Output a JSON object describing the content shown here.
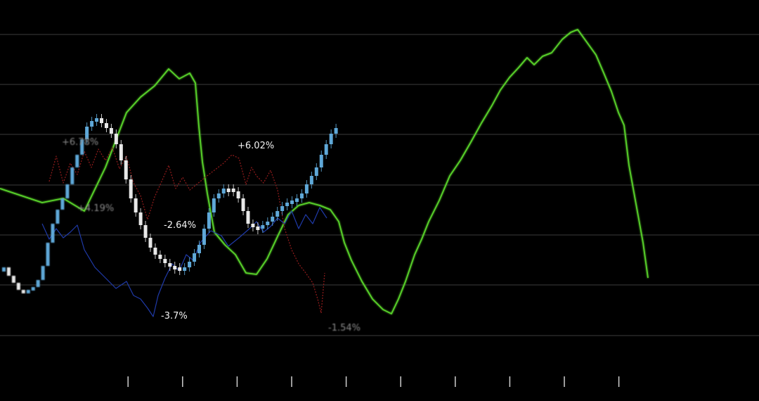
{
  "chart_data": {
    "type": "line",
    "title": "",
    "xlabel": "",
    "ylabel": "",
    "grid": true,
    "x_tick_count": 14,
    "series": [
      {
        "color": "#58d12a",
        "points": [
          [
            0,
            268
          ],
          [
            30,
            278
          ],
          [
            60,
            288
          ],
          [
            90,
            282
          ],
          [
            120,
            300
          ],
          [
            150,
            238
          ],
          [
            180,
            160
          ],
          [
            200,
            138
          ],
          [
            220,
            122
          ],
          [
            240,
            98
          ],
          [
            255,
            112
          ],
          [
            270,
            104
          ],
          [
            278,
            118
          ],
          [
            283,
            180
          ],
          [
            288,
            230
          ],
          [
            295,
            275
          ],
          [
            305,
            330
          ],
          [
            320,
            348
          ],
          [
            335,
            362
          ],
          [
            350,
            388
          ],
          [
            365,
            390
          ],
          [
            380,
            368
          ],
          [
            395,
            336
          ],
          [
            410,
            305
          ],
          [
            425,
            292
          ],
          [
            440,
            288
          ],
          [
            455,
            292
          ],
          [
            470,
            298
          ],
          [
            482,
            315
          ],
          [
            490,
            345
          ],
          [
            500,
            370
          ],
          [
            515,
            400
          ],
          [
            530,
            425
          ],
          [
            545,
            440
          ],
          [
            557,
            446
          ],
          [
            567,
            425
          ],
          [
            577,
            400
          ],
          [
            590,
            362
          ],
          [
            600,
            340
          ],
          [
            610,
            315
          ],
          [
            625,
            285
          ],
          [
            640,
            250
          ],
          [
            655,
            228
          ],
          [
            670,
            202
          ],
          [
            685,
            175
          ],
          [
            700,
            150
          ],
          [
            712,
            128
          ],
          [
            725,
            110
          ],
          [
            738,
            96
          ],
          [
            750,
            82
          ],
          [
            760,
            92
          ],
          [
            772,
            80
          ],
          [
            785,
            75
          ],
          [
            800,
            56
          ],
          [
            812,
            46
          ],
          [
            822,
            42
          ],
          [
            835,
            60
          ],
          [
            848,
            78
          ],
          [
            860,
            106
          ],
          [
            870,
            130
          ],
          [
            880,
            160
          ],
          [
            888,
            178
          ],
          [
            895,
            235
          ],
          [
            905,
            290
          ],
          [
            915,
            345
          ],
          [
            922,
            395
          ]
        ]
      },
      {
        "color": "#1f3aa8",
        "points": [
          [
            60,
            318
          ],
          [
            70,
            340
          ],
          [
            80,
            325
          ],
          [
            90,
            338
          ],
          [
            100,
            330
          ],
          [
            110,
            320
          ],
          [
            120,
            355
          ],
          [
            135,
            380
          ],
          [
            150,
            395
          ],
          [
            165,
            410
          ],
          [
            180,
            400
          ],
          [
            190,
            420
          ],
          [
            200,
            425
          ],
          [
            210,
            438
          ],
          [
            218,
            450
          ],
          [
            225,
            420
          ],
          [
            235,
            395
          ],
          [
            245,
            375
          ],
          [
            255,
            385
          ],
          [
            265,
            362
          ],
          [
            275,
            370
          ],
          [
            285,
            345
          ],
          [
            300,
            328
          ],
          [
            315,
            335
          ],
          [
            325,
            350
          ],
          [
            340,
            338
          ],
          [
            355,
            325
          ],
          [
            365,
            315
          ],
          [
            375,
            330
          ],
          [
            385,
            322
          ],
          [
            395,
            310
          ],
          [
            405,
            318
          ],
          [
            415,
            300
          ],
          [
            425,
            325
          ],
          [
            435,
            305
          ],
          [
            445,
            318
          ],
          [
            455,
            295
          ],
          [
            465,
            310
          ]
        ]
      },
      {
        "color": "#8a1a1a",
        "points": [
          [
            70,
            258
          ],
          [
            80,
            222
          ],
          [
            90,
            260
          ],
          [
            100,
            232
          ],
          [
            110,
            248
          ],
          [
            120,
            215
          ],
          [
            130,
            238
          ],
          [
            140,
            212
          ],
          [
            150,
            228
          ],
          [
            160,
            210
          ],
          [
            170,
            240
          ],
          [
            180,
            222
          ],
          [
            190,
            260
          ],
          [
            200,
            278
          ],
          [
            210,
            312
          ],
          [
            220,
            280
          ],
          [
            230,
            258
          ],
          [
            240,
            235
          ],
          [
            250,
            268
          ],
          [
            260,
            252
          ],
          [
            270,
            270
          ],
          [
            280,
            262
          ],
          [
            292,
            252
          ],
          [
            305,
            242
          ],
          [
            318,
            232
          ],
          [
            330,
            220
          ],
          [
            340,
            225
          ],
          [
            350,
            262
          ],
          [
            358,
            238
          ],
          [
            365,
            250
          ],
          [
            375,
            260
          ],
          [
            385,
            242
          ],
          [
            395,
            270
          ],
          [
            405,
            325
          ],
          [
            415,
            355
          ],
          [
            425,
            375
          ],
          [
            435,
            388
          ],
          [
            445,
            402
          ],
          [
            452,
            425
          ],
          [
            457,
            445
          ],
          [
            462,
            388
          ]
        ]
      }
    ],
    "candles": {
      "color_up": "#5fa8d8",
      "color_down": "#e8e8e8",
      "close": [
        380,
        392,
        402,
        412,
        415,
        412,
        408,
        398,
        378,
        345,
        318,
        298,
        282,
        262,
        238,
        220,
        198,
        180,
        172,
        168,
        175,
        182,
        190,
        205,
        228,
        255,
        282,
        302,
        320,
        338,
        352,
        362,
        368,
        374,
        378,
        380,
        382,
        380,
        372,
        360,
        348,
        325,
        302,
        282,
        275,
        268,
        268,
        272,
        282,
        300,
        318,
        322,
        325,
        320,
        315,
        308,
        300,
        293,
        288,
        285,
        282,
        275,
        262,
        250,
        238,
        220,
        205,
        190,
        182
      ]
    },
    "annotations": [
      {
        "text": "+6.78%",
        "dim": true
      },
      {
        "text": "+4.19%",
        "dim": true
      },
      {
        "text": "+6.02%",
        "dim": false
      },
      {
        "text": "-2.64%",
        "dim": false
      },
      {
        "text": "-3.7%",
        "dim": false
      },
      {
        "text": "-1.54%",
        "dim": true
      }
    ]
  }
}
